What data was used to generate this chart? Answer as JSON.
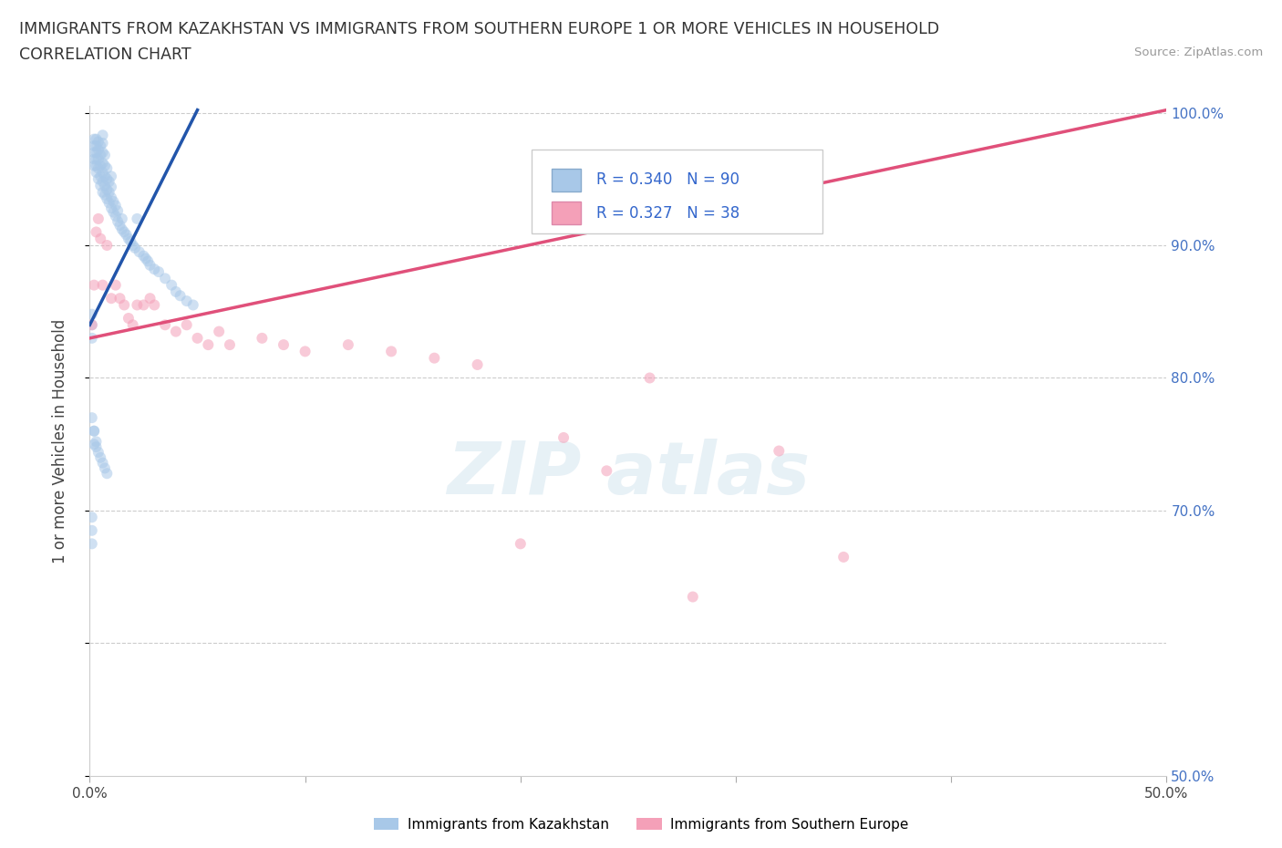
{
  "title_line1": "IMMIGRANTS FROM KAZAKHSTAN VS IMMIGRANTS FROM SOUTHERN EUROPE 1 OR MORE VEHICLES IN HOUSEHOLD",
  "title_line2": "CORRELATION CHART",
  "source_text": "Source: ZipAtlas.com",
  "ylabel": "1 or more Vehicles in Household",
  "xlim": [
    0.0,
    0.5
  ],
  "ylim": [
    0.5,
    1.005
  ],
  "kazakhstan_R": 0.34,
  "kazakhstan_N": 90,
  "southern_europe_R": 0.327,
  "southern_europe_N": 38,
  "kazakhstan_color": "#a8c8e8",
  "kazakhstan_line_color": "#2255aa",
  "southern_europe_color": "#f4a0b8",
  "southern_europe_line_color": "#e0507a",
  "dot_size": 75,
  "dot_alpha": 0.55,
  "kaz_x": [
    0.001,
    0.001,
    0.001,
    0.002,
    0.002,
    0.002,
    0.002,
    0.002,
    0.003,
    0.003,
    0.003,
    0.003,
    0.003,
    0.003,
    0.004,
    0.004,
    0.004,
    0.004,
    0.004,
    0.005,
    0.005,
    0.005,
    0.005,
    0.005,
    0.006,
    0.006,
    0.006,
    0.006,
    0.006,
    0.006,
    0.006,
    0.007,
    0.007,
    0.007,
    0.007,
    0.007,
    0.008,
    0.008,
    0.008,
    0.008,
    0.009,
    0.009,
    0.009,
    0.01,
    0.01,
    0.01,
    0.01,
    0.011,
    0.011,
    0.012,
    0.012,
    0.013,
    0.013,
    0.014,
    0.015,
    0.015,
    0.016,
    0.017,
    0.018,
    0.019,
    0.02,
    0.021,
    0.022,
    0.023,
    0.025,
    0.026,
    0.027,
    0.028,
    0.03,
    0.032,
    0.035,
    0.038,
    0.04,
    0.042,
    0.045,
    0.048,
    0.001,
    0.001,
    0.001,
    0.001,
    0.002,
    0.002,
    0.002,
    0.003,
    0.003,
    0.004,
    0.005,
    0.006,
    0.007,
    0.008
  ],
  "kaz_y": [
    0.695,
    0.685,
    0.675,
    0.96,
    0.965,
    0.97,
    0.975,
    0.98,
    0.955,
    0.96,
    0.965,
    0.97,
    0.975,
    0.98,
    0.95,
    0.958,
    0.965,
    0.972,
    0.978,
    0.945,
    0.952,
    0.96,
    0.968,
    0.975,
    0.94,
    0.948,
    0.955,
    0.962,
    0.97,
    0.977,
    0.983,
    0.938,
    0.945,
    0.952,
    0.96,
    0.968,
    0.935,
    0.942,
    0.95,
    0.958,
    0.932,
    0.94,
    0.948,
    0.928,
    0.936,
    0.944,
    0.952,
    0.925,
    0.933,
    0.922,
    0.93,
    0.918,
    0.926,
    0.915,
    0.912,
    0.92,
    0.91,
    0.908,
    0.905,
    0.903,
    0.9,
    0.898,
    0.92,
    0.895,
    0.892,
    0.89,
    0.888,
    0.885,
    0.882,
    0.88,
    0.875,
    0.87,
    0.865,
    0.862,
    0.858,
    0.855,
    0.848,
    0.84,
    0.83,
    0.77,
    0.76,
    0.75,
    0.76,
    0.752,
    0.748,
    0.744,
    0.74,
    0.736,
    0.732,
    0.728
  ],
  "se_x": [
    0.001,
    0.002,
    0.003,
    0.004,
    0.005,
    0.006,
    0.008,
    0.01,
    0.012,
    0.014,
    0.016,
    0.018,
    0.02,
    0.022,
    0.025,
    0.028,
    0.03,
    0.035,
    0.04,
    0.045,
    0.05,
    0.055,
    0.06,
    0.065,
    0.08,
    0.09,
    0.1,
    0.12,
    0.14,
    0.16,
    0.18,
    0.2,
    0.22,
    0.24,
    0.26,
    0.28,
    0.32,
    0.35
  ],
  "se_y": [
    0.84,
    0.87,
    0.91,
    0.92,
    0.905,
    0.87,
    0.9,
    0.86,
    0.87,
    0.86,
    0.855,
    0.845,
    0.84,
    0.855,
    0.855,
    0.86,
    0.855,
    0.84,
    0.835,
    0.84,
    0.83,
    0.825,
    0.835,
    0.825,
    0.83,
    0.825,
    0.82,
    0.825,
    0.82,
    0.815,
    0.81,
    0.675,
    0.755,
    0.73,
    0.8,
    0.635,
    0.745,
    0.665
  ],
  "kaz_line_x0": 0.0,
  "kaz_line_x1": 0.05,
  "kaz_line_y0": 0.84,
  "kaz_line_y1": 1.002,
  "se_line_x0": 0.0,
  "se_line_x1": 0.5,
  "se_line_y0": 0.83,
  "se_line_y1": 1.002
}
